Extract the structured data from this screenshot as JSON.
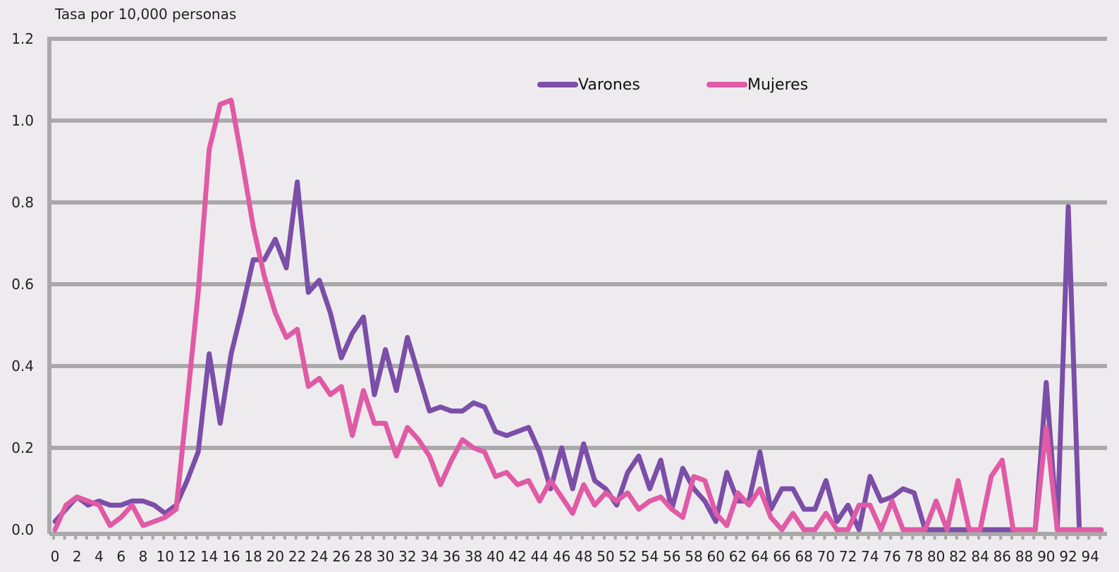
{
  "colors": {
    "varones": "#7b4ea8",
    "mujeres": "#e05aa5",
    "grid": "#a9a9a9",
    "axis_text": "#222222"
  },
  "chart_data": {
    "type": "line",
    "ylabel": "Tasa por 10,000 personas",
    "ylim": [
      0,
      1.2
    ],
    "yticks": [
      0.0,
      0.2,
      0.4,
      0.6,
      0.8,
      1.0,
      1.2
    ],
    "ytick_labels": [
      "0.0",
      "0.2",
      "0.4",
      "0.6",
      "0.8",
      "1.0",
      "1.2"
    ],
    "x": [
      0,
      1,
      2,
      3,
      4,
      5,
      6,
      7,
      8,
      9,
      10,
      11,
      12,
      13,
      14,
      15,
      16,
      17,
      18,
      19,
      20,
      21,
      22,
      23,
      24,
      25,
      26,
      27,
      28,
      29,
      30,
      31,
      32,
      33,
      34,
      35,
      36,
      37,
      38,
      39,
      40,
      41,
      42,
      43,
      44,
      45,
      46,
      47,
      48,
      49,
      50,
      51,
      52,
      53,
      54,
      55,
      56,
      57,
      58,
      59,
      60,
      61,
      62,
      63,
      64,
      65,
      66,
      67,
      68,
      69,
      70,
      71,
      72,
      73,
      74,
      75,
      76,
      77,
      78,
      79,
      80,
      81,
      82,
      83,
      84,
      85,
      86,
      87,
      88,
      89,
      90,
      91,
      92,
      93,
      94,
      95
    ],
    "xtick_labels": [
      "0",
      "2",
      "4",
      "6",
      "8",
      "10",
      "12",
      "14",
      "16",
      "18",
      "20",
      "22",
      "24",
      "26",
      "28",
      "30",
      "32",
      "34",
      "36",
      "38",
      "40",
      "42",
      "44",
      "46",
      "48",
      "50",
      "52",
      "54",
      "56",
      "58",
      "60",
      "62",
      "64",
      "66",
      "68",
      "70",
      "72",
      "74",
      "76",
      "78",
      "80",
      "82",
      "84",
      "86",
      "88",
      "90",
      "92",
      "94"
    ],
    "legend_position": "top-center",
    "grid": true,
    "series": [
      {
        "name": "Varones",
        "color": "#7b4ea8",
        "values": [
          0.02,
          0.05,
          0.08,
          0.06,
          0.07,
          0.06,
          0.06,
          0.07,
          0.07,
          0.06,
          0.04,
          0.06,
          0.12,
          0.19,
          0.43,
          0.26,
          0.43,
          0.54,
          0.66,
          0.66,
          0.71,
          0.64,
          0.85,
          0.58,
          0.61,
          0.53,
          0.42,
          0.48,
          0.52,
          0.33,
          0.44,
          0.34,
          0.47,
          0.38,
          0.29,
          0.3,
          0.29,
          0.29,
          0.31,
          0.3,
          0.24,
          0.23,
          0.24,
          0.25,
          0.19,
          0.1,
          0.2,
          0.1,
          0.21,
          0.12,
          0.1,
          0.06,
          0.14,
          0.18,
          0.1,
          0.17,
          0.05,
          0.15,
          0.1,
          0.07,
          0.02,
          0.14,
          0.07,
          0.07,
          0.19,
          0.05,
          0.1,
          0.1,
          0.05,
          0.05,
          0.12,
          0.02,
          0.06,
          0.0,
          0.13,
          0.07,
          0.08,
          0.1,
          0.09,
          0.0,
          0.0,
          0.0,
          0.0,
          0.0,
          0.0,
          0.0,
          0.0,
          0.0,
          0.0,
          0.0,
          0.36,
          0.0,
          0.79,
          0.0,
          0.0,
          0.0
        ]
      },
      {
        "name": "Mujeres",
        "color": "#e05aa5",
        "values": [
          0.0,
          0.06,
          0.08,
          0.07,
          0.06,
          0.01,
          0.03,
          0.06,
          0.01,
          0.02,
          0.03,
          0.05,
          0.31,
          0.58,
          0.93,
          1.04,
          1.05,
          0.9,
          0.74,
          0.62,
          0.53,
          0.47,
          0.49,
          0.35,
          0.37,
          0.33,
          0.35,
          0.23,
          0.34,
          0.26,
          0.26,
          0.18,
          0.25,
          0.22,
          0.18,
          0.11,
          0.17,
          0.22,
          0.2,
          0.19,
          0.13,
          0.14,
          0.11,
          0.12,
          0.07,
          0.12,
          0.08,
          0.04,
          0.11,
          0.06,
          0.09,
          0.07,
          0.09,
          0.05,
          0.07,
          0.08,
          0.05,
          0.03,
          0.13,
          0.12,
          0.04,
          0.01,
          0.09,
          0.06,
          0.1,
          0.03,
          0.0,
          0.04,
          0.0,
          0.0,
          0.04,
          0.0,
          0.0,
          0.06,
          0.06,
          0.0,
          0.07,
          0.0,
          0.0,
          0.0,
          0.07,
          0.0,
          0.12,
          0.0,
          0.0,
          0.13,
          0.17,
          0.0,
          0.0,
          0.0,
          0.25,
          0.0,
          0.0,
          0.0,
          0.0,
          0.0
        ]
      }
    ]
  }
}
